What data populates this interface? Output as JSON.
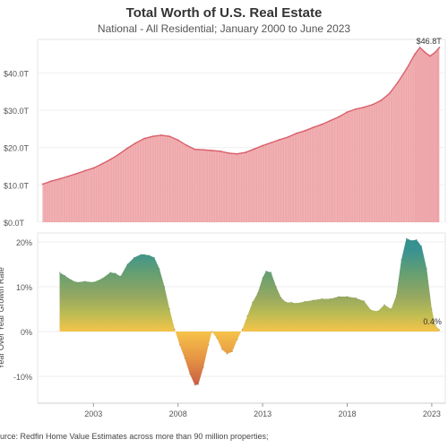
{
  "title": "Total Worth of U.S. Real Estate",
  "subtitle": "National - All Residential; January 2000 to June 2023",
  "source": "urce: Redfin Home Value Estimates across more than 90 million properties;",
  "chart_data": [
    {
      "type": "area",
      "ylabel": "",
      "ylim": [
        0,
        48
      ],
      "y_unit": "T",
      "y_ticks": [
        "$0.0T",
        "$10.0T",
        "$20.0T",
        "$30.0T",
        "$40.0T"
      ],
      "y_tick_values": [
        0,
        10,
        20,
        30,
        40
      ],
      "color": "#f0a6a8",
      "line_color": "#d9606a",
      "x": [
        2000.0,
        2000.5,
        2001.0,
        2001.5,
        2002.0,
        2002.5,
        2003.0,
        2003.5,
        2004.0,
        2004.5,
        2005.0,
        2005.5,
        2006.0,
        2006.5,
        2007.0,
        2007.5,
        2008.0,
        2008.5,
        2009.0,
        2009.5,
        2010.0,
        2010.5,
        2011.0,
        2011.5,
        2012.0,
        2012.5,
        2013.0,
        2013.5,
        2014.0,
        2014.5,
        2015.0,
        2015.5,
        2016.0,
        2016.5,
        2017.0,
        2017.5,
        2018.0,
        2018.5,
        2019.0,
        2019.5,
        2020.0,
        2020.5,
        2021.0,
        2021.5,
        2022.0,
        2022.3,
        2022.6,
        2022.9,
        2023.2,
        2023.45
      ],
      "values": [
        10.2,
        11.0,
        11.6,
        12.3,
        13.0,
        13.8,
        14.5,
        15.6,
        16.8,
        18.2,
        19.8,
        21.2,
        22.4,
        23.0,
        23.3,
        23.0,
        22.0,
        20.6,
        19.5,
        19.4,
        19.2,
        19.0,
        18.5,
        18.3,
        18.7,
        19.6,
        20.5,
        21.3,
        22.1,
        22.8,
        23.8,
        24.5,
        25.4,
        26.2,
        27.2,
        28.2,
        29.5,
        30.3,
        30.8,
        31.5,
        32.6,
        34.5,
        37.5,
        41.0,
        45.0,
        46.8,
        45.5,
        44.5,
        45.5,
        46.8
      ],
      "annotations": [
        {
          "x": 2022.3,
          "y": 46.8,
          "text": "$46.8T"
        }
      ]
    },
    {
      "type": "area",
      "ylabel": "Year Over Year Growth Rate",
      "ylim": [
        -16,
        22
      ],
      "y_ticks": [
        "20%",
        "10%",
        "0%",
        "-10%"
      ],
      "y_tick_values": [
        20,
        10,
        0,
        -10
      ],
      "x_ticks": [
        "2003",
        "2008",
        "2013",
        "2018",
        "2023"
      ],
      "x_tick_values": [
        2003,
        2008,
        2013,
        2018,
        2023
      ],
      "xlim": [
        1999.7,
        2023.8
      ],
      "colorscale": [
        {
          "v": -12,
          "color": "#c4553b"
        },
        {
          "v": -6,
          "color": "#e58f3a"
        },
        {
          "v": 0,
          "color": "#f5c040"
        },
        {
          "v": 4,
          "color": "#b8b84a"
        },
        {
          "v": 8,
          "color": "#8ea35a"
        },
        {
          "v": 13,
          "color": "#5e9a6a"
        },
        {
          "v": 18,
          "color": "#2f8d8a"
        },
        {
          "v": 21,
          "color": "#2a8a8c"
        }
      ],
      "x": [
        2001.0,
        2001.3,
        2001.7,
        2002.0,
        2002.5,
        2003.0,
        2003.5,
        2004.0,
        2004.3,
        2004.6,
        2005.0,
        2005.4,
        2005.8,
        2006.0,
        2006.3,
        2006.6,
        2006.9,
        2007.2,
        2007.5,
        2007.8,
        2008.1,
        2008.4,
        2008.7,
        2009.0,
        2009.2,
        2009.5,
        2009.8,
        2010.0,
        2010.3,
        2010.6,
        2010.9,
        2011.2,
        2011.5,
        2011.8,
        2012.1,
        2012.4,
        2012.7,
        2013.0,
        2013.2,
        2013.5,
        2013.8,
        2014.1,
        2014.4,
        2014.7,
        2015.0,
        2015.5,
        2016.0,
        2016.5,
        2017.0,
        2017.5,
        2018.0,
        2018.5,
        2019.0,
        2019.4,
        2019.8,
        2020.2,
        2020.6,
        2020.9,
        2021.2,
        2021.5,
        2021.8,
        2022.1,
        2022.4,
        2022.7,
        2023.0,
        2023.2,
        2023.45
      ],
      "values": [
        13.2,
        12.5,
        11.5,
        11.0,
        11.2,
        11.0,
        11.8,
        13.2,
        13.0,
        12.3,
        15.0,
        16.5,
        17.2,
        17.2,
        17.0,
        16.5,
        14.0,
        10.0,
        5.0,
        0.5,
        -3.0,
        -6.0,
        -9.5,
        -12.0,
        -11.8,
        -8.0,
        -3.0,
        0.0,
        -1.5,
        -4.0,
        -5.0,
        -4.5,
        -1.8,
        0.5,
        3.5,
        6.5,
        8.5,
        12.0,
        13.5,
        13.2,
        10.0,
        7.5,
        6.5,
        6.5,
        6.3,
        6.7,
        7.0,
        7.3,
        7.3,
        7.8,
        7.8,
        7.5,
        6.8,
        4.8,
        4.5,
        6.0,
        5.0,
        8.0,
        16.0,
        20.8,
        20.3,
        20.5,
        19.0,
        14.0,
        5.0,
        1.5,
        0.4
      ],
      "annotations": [
        {
          "x": 2023.45,
          "y": 0.4,
          "text": "0.4%"
        }
      ]
    }
  ]
}
